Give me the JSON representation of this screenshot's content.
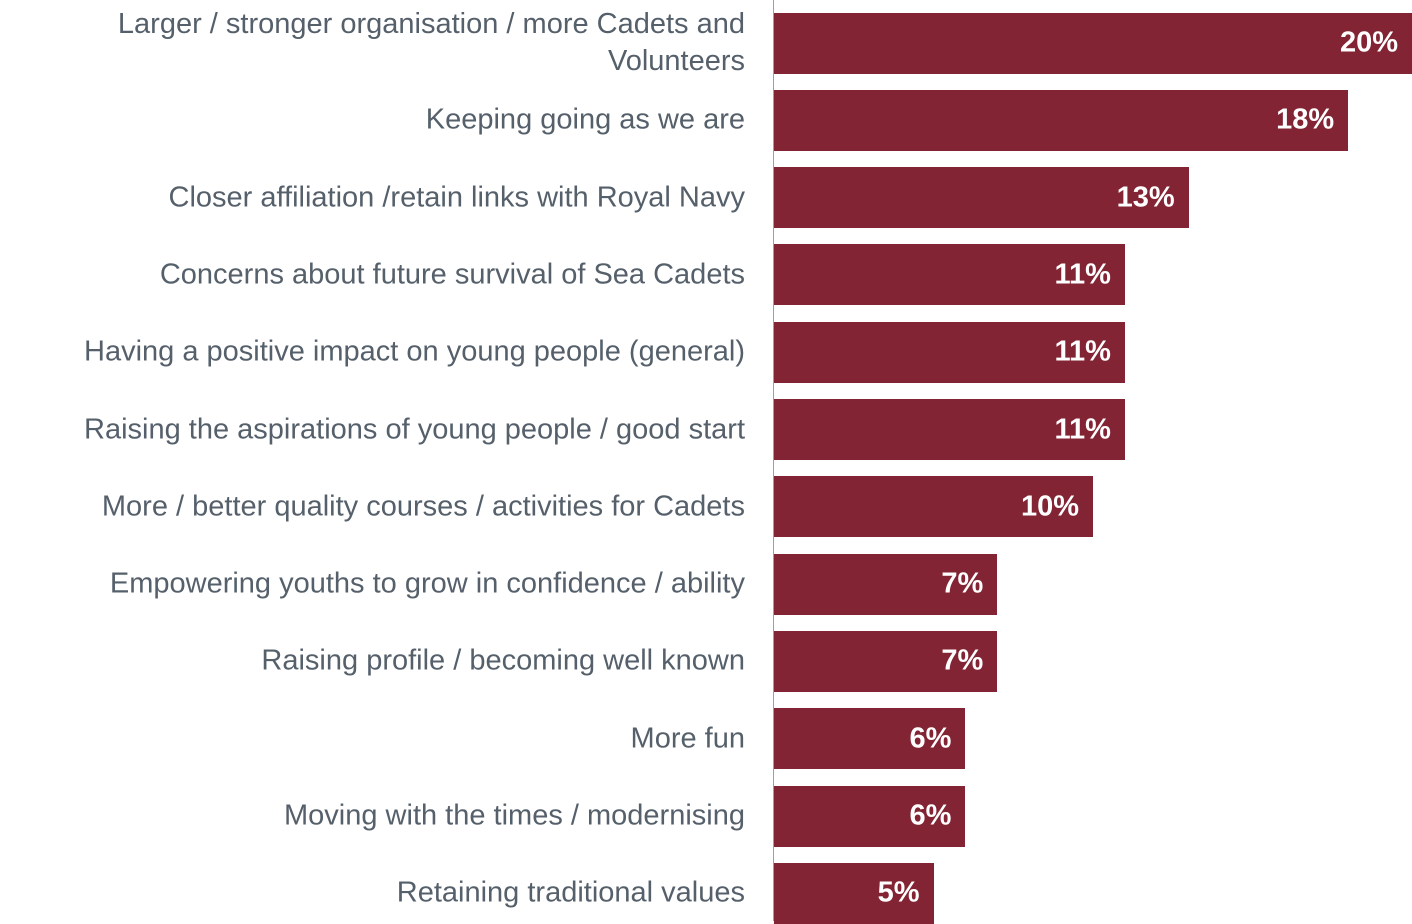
{
  "colors": {
    "bar": "#822433",
    "label_text": "#55606b",
    "value_text": "#ffffff",
    "axis": "#9aa0a6"
  },
  "chart_data": {
    "type": "bar",
    "orientation": "horizontal",
    "title": "",
    "xlabel": "",
    "ylabel": "",
    "xlim": [
      0,
      20
    ],
    "grid": false,
    "legend": "none",
    "categories": [
      "Larger / stronger organisation / more Cadets and Volunteers",
      "Keeping going as we are",
      "Closer affiliation /retain links with Royal Navy",
      "Concerns about future survival of Sea Cadets",
      "Having a positive impact on young people (general)",
      "Raising the aspirations of young people / good start",
      "More / better quality courses / activities for Cadets",
      "Empowering youths to grow in confidence / ability",
      "Raising profile / becoming well known",
      "More fun",
      "Moving with the times / modernising",
      "Retaining traditional values"
    ],
    "values": [
      20,
      18,
      13,
      11,
      11,
      11,
      10,
      7,
      7,
      6,
      6,
      5
    ],
    "value_labels": [
      "20%",
      "18%",
      "13%",
      "11%",
      "11%",
      "11%",
      "10%",
      "7%",
      "7%",
      "6%",
      "6%",
      "5%"
    ]
  }
}
